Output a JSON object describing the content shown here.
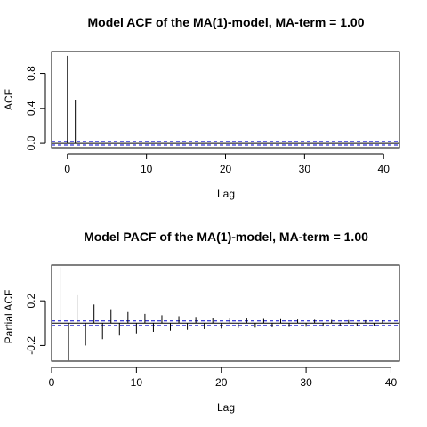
{
  "chart_data": [
    {
      "type": "bar",
      "title": "Model ACF of the MA(1)-model, MA-term = 1.00",
      "xlabel": "Lag",
      "ylabel": "ACF",
      "xlim": [
        -2,
        42
      ],
      "ylim": [
        -0.05,
        1.05
      ],
      "xticks": [
        0,
        10,
        20,
        30,
        40
      ],
      "yticks": [
        0.0,
        0.4,
        0.8
      ],
      "ytick_labels": [
        "0.0",
        "0.4",
        "0.8"
      ],
      "confidence_band": 0.02,
      "colors": {
        "bars": "#000000",
        "band": "#0000cc",
        "zero_line": "#000000"
      },
      "grid": false,
      "x": [
        0,
        1,
        2,
        3,
        4,
        5,
        6,
        7,
        8,
        9,
        10,
        11,
        12,
        13,
        14,
        15,
        16,
        17,
        18,
        19,
        20,
        21,
        22,
        23,
        24,
        25,
        26,
        27,
        28,
        29,
        30,
        31,
        32,
        33,
        34,
        35,
        36,
        37,
        38,
        39,
        40
      ],
      "values": [
        1.0,
        0.5,
        0,
        0,
        0,
        0,
        0,
        0,
        0,
        0,
        0,
        0,
        0,
        0,
        0,
        0,
        0,
        0,
        0,
        0,
        0,
        0,
        0,
        0,
        0,
        0,
        0,
        0,
        0,
        0,
        0,
        0,
        0,
        0,
        0,
        0,
        0,
        0,
        0,
        0,
        0
      ]
    },
    {
      "type": "bar",
      "title": "Model PACF of the MA(1)-model, MA-term = 1.00",
      "xlabel": "Lag",
      "ylabel": "Partial ACF",
      "xlim": [
        0,
        41
      ],
      "ylim": [
        -0.34,
        0.52
      ],
      "xticks": [
        0,
        10,
        20,
        30,
        40
      ],
      "yticks": [
        -0.2,
        0.2
      ],
      "ytick_labels": [
        "-0.2",
        "0.2"
      ],
      "confidence_band": 0.02,
      "colors": {
        "bars": "#000000",
        "band": "#0000cc",
        "zero_line": "#000000"
      },
      "grid": false,
      "x": [
        1,
        2,
        3,
        4,
        5,
        6,
        7,
        8,
        9,
        10,
        11,
        12,
        13,
        14,
        15,
        16,
        17,
        18,
        19,
        20,
        21,
        22,
        23,
        24,
        25,
        26,
        27,
        28,
        29,
        30,
        31,
        32,
        33,
        34,
        35,
        36,
        37,
        38,
        39,
        40
      ],
      "values": [
        0.5,
        -0.333,
        0.25,
        -0.2,
        0.167,
        -0.143,
        0.125,
        -0.111,
        0.1,
        -0.091,
        0.083,
        -0.077,
        0.071,
        -0.067,
        0.0625,
        -0.059,
        0.056,
        -0.053,
        0.05,
        -0.048,
        0.045,
        -0.043,
        0.042,
        -0.04,
        0.038,
        -0.037,
        0.036,
        -0.034,
        0.033,
        -0.032,
        0.031,
        -0.03,
        0.03,
        -0.029,
        0.028,
        -0.027,
        0.027,
        -0.026,
        0.026,
        -0.025
      ]
    }
  ]
}
